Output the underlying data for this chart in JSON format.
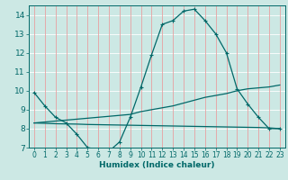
{
  "title": "",
  "xlabel": "Humidex (Indice chaleur)",
  "bg_color": "#cce8e4",
  "grid_h_color": "#ffffff",
  "grid_v_color": "#e8a0a0",
  "line_color": "#006868",
  "xlim": [
    -0.5,
    23.5
  ],
  "ylim": [
    7,
    14.5
  ],
  "xticks": [
    0,
    1,
    2,
    3,
    4,
    5,
    6,
    7,
    8,
    9,
    10,
    11,
    12,
    13,
    14,
    15,
    16,
    17,
    18,
    19,
    20,
    21,
    22,
    23
  ],
  "yticks": [
    7,
    8,
    9,
    10,
    11,
    12,
    13,
    14
  ],
  "line1_x": [
    0,
    1,
    2,
    3,
    4,
    5,
    6,
    7,
    8,
    9,
    10,
    11,
    12,
    13,
    14,
    15,
    16,
    17,
    18,
    19,
    20,
    21,
    22,
    23
  ],
  "line1_y": [
    9.9,
    9.2,
    8.6,
    8.3,
    7.7,
    7.0,
    6.9,
    6.8,
    7.3,
    8.6,
    10.2,
    11.9,
    13.5,
    13.7,
    14.2,
    14.3,
    13.7,
    13.0,
    12.0,
    10.1,
    9.3,
    8.6,
    8.0,
    8.0
  ],
  "line2_x": [
    0,
    1,
    2,
    3,
    4,
    5,
    6,
    7,
    8,
    9,
    10,
    11,
    12,
    13,
    14,
    15,
    16,
    17,
    18,
    19,
    20,
    21,
    22,
    23
  ],
  "line2_y": [
    8.3,
    8.35,
    8.4,
    8.45,
    8.5,
    8.55,
    8.6,
    8.65,
    8.7,
    8.75,
    8.9,
    9.0,
    9.1,
    9.2,
    9.35,
    9.5,
    9.65,
    9.75,
    9.85,
    10.0,
    10.1,
    10.15,
    10.2,
    10.3
  ],
  "line3_x": [
    0,
    1,
    2,
    3,
    4,
    5,
    6,
    7,
    8,
    9,
    10,
    11,
    12,
    13,
    14,
    15,
    16,
    17,
    18,
    19,
    20,
    21,
    22,
    23
  ],
  "line3_y": [
    8.3,
    8.28,
    8.26,
    8.25,
    8.24,
    8.22,
    8.21,
    8.2,
    8.19,
    8.18,
    8.17,
    8.16,
    8.15,
    8.14,
    8.13,
    8.12,
    8.11,
    8.1,
    8.09,
    8.08,
    8.07,
    8.06,
    8.04,
    8.0
  ]
}
